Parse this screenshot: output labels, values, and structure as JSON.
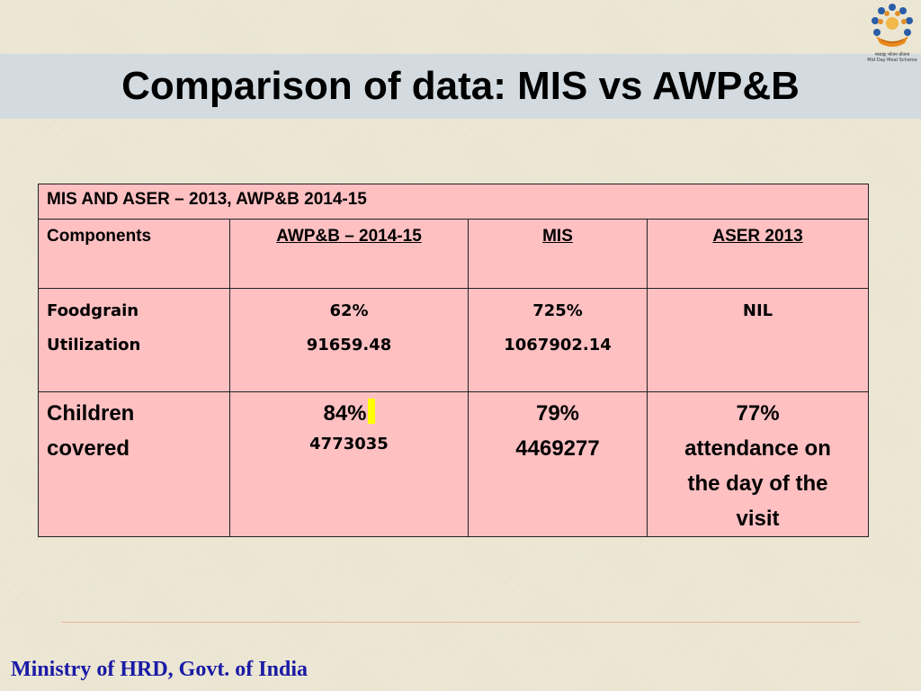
{
  "slide": {
    "title": "Comparison of data: MIS vs AWP&B",
    "logo_caption": "मध्याह्न भोजन योजना\nMid Day Meal Scheme",
    "footer": "Ministry of HRD, Govt. of India"
  },
  "table": {
    "header": "MIS AND ASER – 2013, AWP&B 2014-15",
    "columns": [
      "Components",
      "AWP&B – 2014-15",
      "MIS",
      "ASER 2013"
    ],
    "rows": [
      {
        "component": [
          "Foodgrain",
          "Utilization"
        ],
        "awpb": [
          "62%",
          "91659.48"
        ],
        "mis": [
          "725%",
          "1067902.14"
        ],
        "aser": [
          "NIL"
        ]
      },
      {
        "component": [
          "Children",
          "covered"
        ],
        "awpb": [
          "84%",
          "4773035"
        ],
        "mis": [
          "79%",
          "4469277"
        ],
        "aser": [
          "77%",
          "attendance on",
          "the day of the",
          "visit"
        ]
      }
    ]
  },
  "colors": {
    "background": "#ece6d2",
    "title_band": "#d3dbe0",
    "table_fill": "#ffc0c2",
    "footer_text": "#1a1aa6",
    "highlight": "#ffff00"
  }
}
